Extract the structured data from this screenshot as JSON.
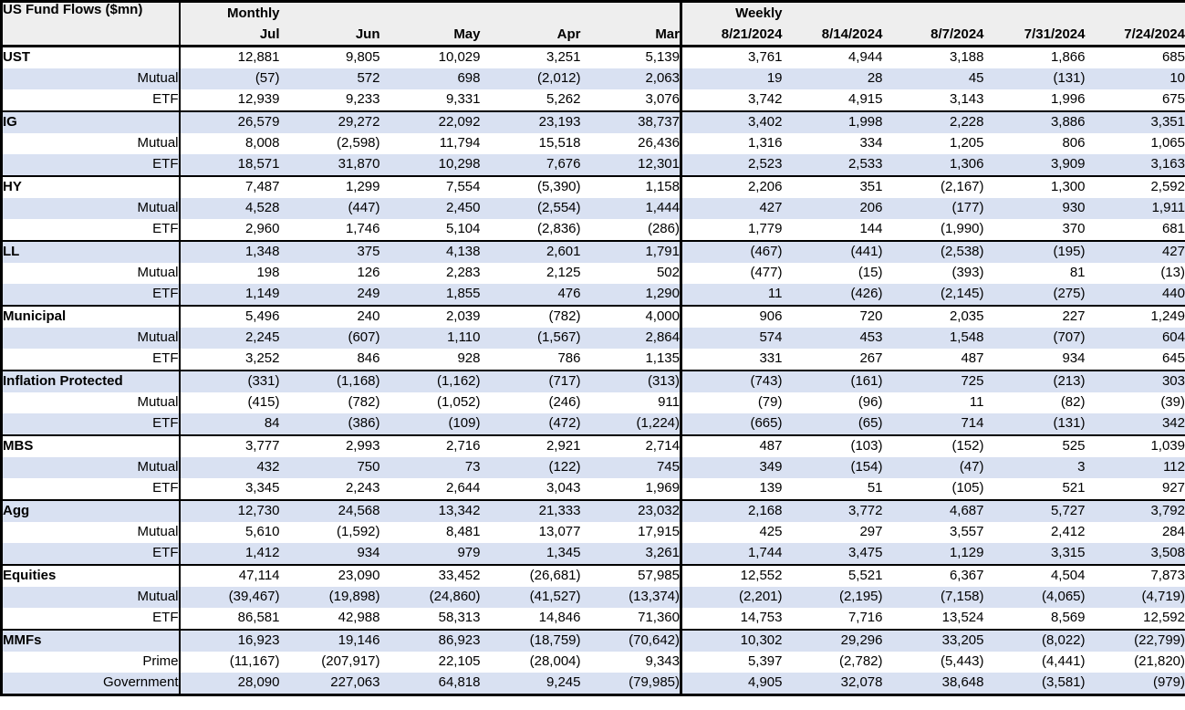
{
  "colors": {
    "stripe": "#d9e1f2",
    "header_bg": "#eeeeee",
    "border": "#000000",
    "text": "#000000"
  },
  "chart_data": {
    "type": "table",
    "title": "US Fund Flows ($mn)",
    "section_labels": {
      "monthly": "Monthly",
      "weekly": "Weekly"
    },
    "monthly_columns": [
      "Jul",
      "Jun",
      "May",
      "Apr",
      "Mar"
    ],
    "weekly_columns": [
      "8/21/2024",
      "8/14/2024",
      "8/7/2024",
      "7/31/2024",
      "7/24/2024"
    ],
    "groups": [
      {
        "name": "UST",
        "total": {
          "monthly": [
            "12,881",
            "9,805",
            "10,029",
            "3,251",
            "5,139"
          ],
          "weekly": [
            "3,761",
            "4,944",
            "3,188",
            "1,866",
            "685"
          ]
        },
        "sub": [
          {
            "label": "Mutual",
            "monthly": [
              "(57)",
              "572",
              "698",
              "(2,012)",
              "2,063"
            ],
            "weekly": [
              "19",
              "28",
              "45",
              "(131)",
              "10"
            ]
          },
          {
            "label": "ETF",
            "monthly": [
              "12,939",
              "9,233",
              "9,331",
              "5,262",
              "3,076"
            ],
            "weekly": [
              "3,742",
              "4,915",
              "3,143",
              "1,996",
              "675"
            ]
          }
        ]
      },
      {
        "name": "IG",
        "total": {
          "monthly": [
            "26,579",
            "29,272",
            "22,092",
            "23,193",
            "38,737"
          ],
          "weekly": [
            "3,402",
            "1,998",
            "2,228",
            "3,886",
            "3,351"
          ]
        },
        "sub": [
          {
            "label": "Mutual",
            "monthly": [
              "8,008",
              "(2,598)",
              "11,794",
              "15,518",
              "26,436"
            ],
            "weekly": [
              "1,316",
              "334",
              "1,205",
              "806",
              "1,065"
            ]
          },
          {
            "label": "ETF",
            "monthly": [
              "18,571",
              "31,870",
              "10,298",
              "7,676",
              "12,301"
            ],
            "weekly": [
              "2,523",
              "2,533",
              "1,306",
              "3,909",
              "3,163"
            ]
          }
        ]
      },
      {
        "name": "HY",
        "total": {
          "monthly": [
            "7,487",
            "1,299",
            "7,554",
            "(5,390)",
            "1,158"
          ],
          "weekly": [
            "2,206",
            "351",
            "(2,167)",
            "1,300",
            "2,592"
          ]
        },
        "sub": [
          {
            "label": "Mutual",
            "monthly": [
              "4,528",
              "(447)",
              "2,450",
              "(2,554)",
              "1,444"
            ],
            "weekly": [
              "427",
              "206",
              "(177)",
              "930",
              "1,911"
            ]
          },
          {
            "label": "ETF",
            "monthly": [
              "2,960",
              "1,746",
              "5,104",
              "(2,836)",
              "(286)"
            ],
            "weekly": [
              "1,779",
              "144",
              "(1,990)",
              "370",
              "681"
            ]
          }
        ]
      },
      {
        "name": "LL",
        "total": {
          "monthly": [
            "1,348",
            "375",
            "4,138",
            "2,601",
            "1,791"
          ],
          "weekly": [
            "(467)",
            "(441)",
            "(2,538)",
            "(195)",
            "427"
          ]
        },
        "sub": [
          {
            "label": "Mutual",
            "monthly": [
              "198",
              "126",
              "2,283",
              "2,125",
              "502"
            ],
            "weekly": [
              "(477)",
              "(15)",
              "(393)",
              "81",
              "(13)"
            ]
          },
          {
            "label": "ETF",
            "monthly": [
              "1,149",
              "249",
              "1,855",
              "476",
              "1,290"
            ],
            "weekly": [
              "11",
              "(426)",
              "(2,145)",
              "(275)",
              "440"
            ]
          }
        ]
      },
      {
        "name": "Municipal",
        "total": {
          "monthly": [
            "5,496",
            "240",
            "2,039",
            "(782)",
            "4,000"
          ],
          "weekly": [
            "906",
            "720",
            "2,035",
            "227",
            "1,249"
          ]
        },
        "sub": [
          {
            "label": "Mutual",
            "monthly": [
              "2,245",
              "(607)",
              "1,110",
              "(1,567)",
              "2,864"
            ],
            "weekly": [
              "574",
              "453",
              "1,548",
              "(707)",
              "604"
            ]
          },
          {
            "label": "ETF",
            "monthly": [
              "3,252",
              "846",
              "928",
              "786",
              "1,135"
            ],
            "weekly": [
              "331",
              "267",
              "487",
              "934",
              "645"
            ]
          }
        ]
      },
      {
        "name": "Inflation Protected",
        "total": {
          "monthly": [
            "(331)",
            "(1,168)",
            "(1,162)",
            "(717)",
            "(313)"
          ],
          "weekly": [
            "(743)",
            "(161)",
            "725",
            "(213)",
            "303"
          ]
        },
        "sub": [
          {
            "label": "Mutual",
            "monthly": [
              "(415)",
              "(782)",
              "(1,052)",
              "(246)",
              "911"
            ],
            "weekly": [
              "(79)",
              "(96)",
              "11",
              "(82)",
              "(39)"
            ]
          },
          {
            "label": "ETF",
            "monthly": [
              "84",
              "(386)",
              "(109)",
              "(472)",
              "(1,224)"
            ],
            "weekly": [
              "(665)",
              "(65)",
              "714",
              "(131)",
              "342"
            ]
          }
        ]
      },
      {
        "name": "MBS",
        "total": {
          "monthly": [
            "3,777",
            "2,993",
            "2,716",
            "2,921",
            "2,714"
          ],
          "weekly": [
            "487",
            "(103)",
            "(152)",
            "525",
            "1,039"
          ]
        },
        "sub": [
          {
            "label": "Mutual",
            "monthly": [
              "432",
              "750",
              "73",
              "(122)",
              "745"
            ],
            "weekly": [
              "349",
              "(154)",
              "(47)",
              "3",
              "112"
            ]
          },
          {
            "label": "ETF",
            "monthly": [
              "3,345",
              "2,243",
              "2,644",
              "3,043",
              "1,969"
            ],
            "weekly": [
              "139",
              "51",
              "(105)",
              "521",
              "927"
            ]
          }
        ]
      },
      {
        "name": "Agg",
        "total": {
          "monthly": [
            "12,730",
            "24,568",
            "13,342",
            "21,333",
            "23,032"
          ],
          "weekly": [
            "2,168",
            "3,772",
            "4,687",
            "5,727",
            "3,792"
          ]
        },
        "sub": [
          {
            "label": "Mutual",
            "monthly": [
              "5,610",
              "(1,592)",
              "8,481",
              "13,077",
              "17,915"
            ],
            "weekly": [
              "425",
              "297",
              "3,557",
              "2,412",
              "284"
            ]
          },
          {
            "label": "ETF",
            "monthly": [
              "1,412",
              "934",
              "979",
              "1,345",
              "3,261"
            ],
            "weekly": [
              "1,744",
              "3,475",
              "1,129",
              "3,315",
              "3,508"
            ]
          }
        ]
      },
      {
        "name": "Equities",
        "total": {
          "monthly": [
            "47,114",
            "23,090",
            "33,452",
            "(26,681)",
            "57,985"
          ],
          "weekly": [
            "12,552",
            "5,521",
            "6,367",
            "4,504",
            "7,873"
          ]
        },
        "sub": [
          {
            "label": "Mutual",
            "monthly": [
              "(39,467)",
              "(19,898)",
              "(24,860)",
              "(41,527)",
              "(13,374)"
            ],
            "weekly": [
              "(2,201)",
              "(2,195)",
              "(7,158)",
              "(4,065)",
              "(4,719)"
            ]
          },
          {
            "label": "ETF",
            "monthly": [
              "86,581",
              "42,988",
              "58,313",
              "14,846",
              "71,360"
            ],
            "weekly": [
              "14,753",
              "7,716",
              "13,524",
              "8,569",
              "12,592"
            ]
          }
        ]
      },
      {
        "name": "MMFs",
        "total": {
          "monthly": [
            "16,923",
            "19,146",
            "86,923",
            "(18,759)",
            "(70,642)"
          ],
          "weekly": [
            "10,302",
            "29,296",
            "33,205",
            "(8,022)",
            "(22,799)"
          ]
        },
        "sub": [
          {
            "label": "Prime",
            "monthly": [
              "(11,167)",
              "(207,917)",
              "22,105",
              "(28,004)",
              "9,343"
            ],
            "weekly": [
              "5,397",
              "(2,782)",
              "(5,443)",
              "(4,441)",
              "(21,820)"
            ]
          },
          {
            "label": "Government",
            "monthly": [
              "28,090",
              "227,063",
              "64,818",
              "9,245",
              "(79,985)"
            ],
            "weekly": [
              "4,905",
              "32,078",
              "38,648",
              "(3,581)",
              "(979)"
            ]
          }
        ]
      }
    ]
  }
}
